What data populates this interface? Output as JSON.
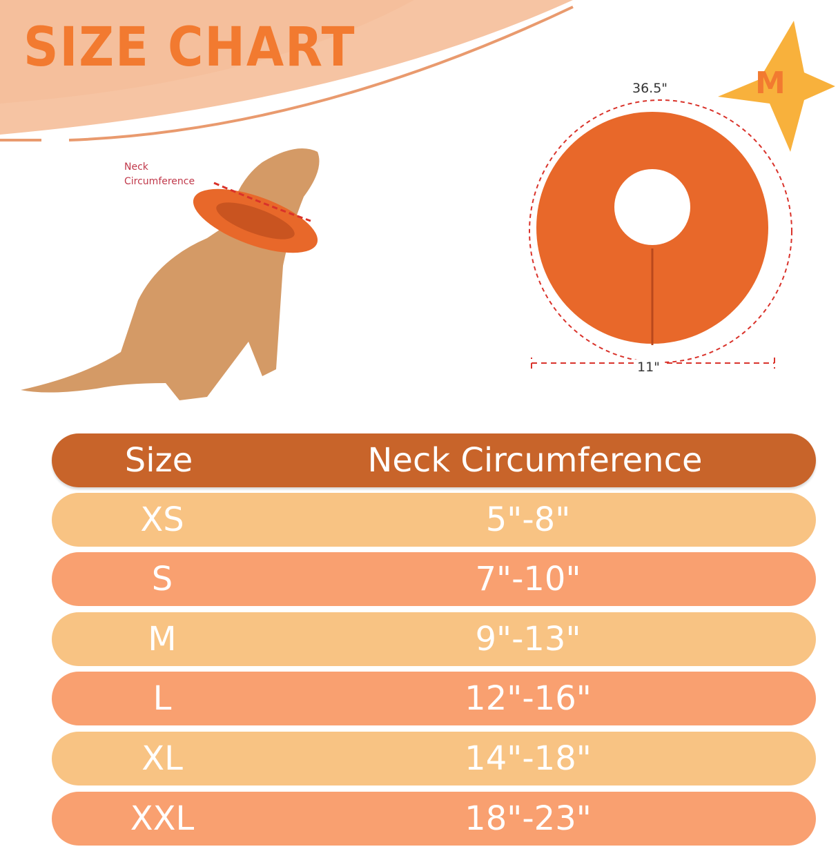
{
  "title": "SIZE CHART",
  "illustration": {
    "neck_label_line1": "Neck",
    "neck_label_line2": "Circumference",
    "collar_circumference": "36.5\"",
    "collar_width": "11\"",
    "size_badge": "M"
  },
  "colors": {
    "title": "#f27a30",
    "header_row": "#c8642a",
    "row_light": "#f8c383",
    "row_dark": "#f9a070",
    "banner": "#f6c4a3"
  },
  "table": {
    "headers": [
      "Size",
      "Neck Circumference"
    ],
    "rows": [
      {
        "size": "XS",
        "neck": "5\"-8\""
      },
      {
        "size": "S",
        "neck": "7\"-10\""
      },
      {
        "size": "M",
        "neck": "9\"-13\""
      },
      {
        "size": "L",
        "neck": "12\"-16\""
      },
      {
        "size": "XL",
        "neck": "14\"-18\""
      },
      {
        "size": "XXL",
        "neck": "18\"-23\""
      }
    ]
  }
}
